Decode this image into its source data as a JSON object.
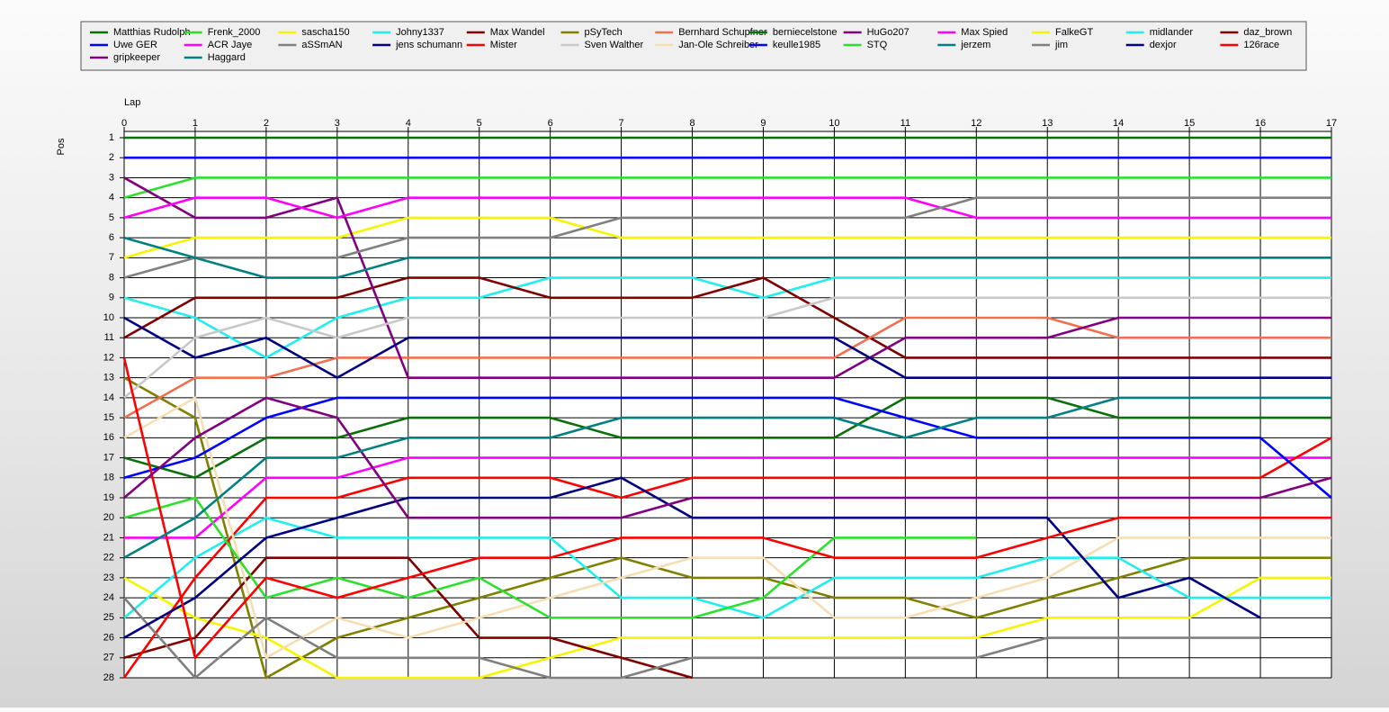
{
  "chart_data": {
    "type": "line",
    "x_label": "Lap",
    "y_label": "Pos",
    "x": [
      0,
      1,
      2,
      3,
      4,
      5,
      6,
      7,
      8,
      9,
      10,
      11,
      12,
      13,
      14,
      15,
      16,
      17
    ],
    "xlim": [
      0,
      17
    ],
    "xticks": [
      0,
      1,
      2,
      3,
      4,
      5,
      6,
      7,
      8,
      9,
      10,
      11,
      12,
      13,
      14,
      15,
      16,
      17
    ],
    "ylim": [
      1,
      28
    ],
    "y_inverted": true,
    "yticks": [
      1,
      2,
      3,
      4,
      5,
      6,
      7,
      8,
      9,
      10,
      11,
      12,
      13,
      14,
      15,
      16,
      17,
      18,
      19,
      20,
      21,
      22,
      23,
      24,
      25,
      26,
      27,
      28
    ],
    "grid": true,
    "legend": "top",
    "series": [
      {
        "name": "Matthias Rudolph",
        "color": "#0a700a",
        "values": [
          1,
          1,
          1,
          1,
          1,
          1,
          1,
          1,
          1,
          1,
          1,
          1,
          1,
          1,
          1,
          1,
          1,
          1
        ]
      },
      {
        "name": "Frenk_2000",
        "color": "#2ee02e",
        "values": [
          4,
          3,
          3,
          3,
          3,
          3,
          3,
          3,
          3,
          3,
          3,
          3,
          3,
          3,
          3,
          3,
          3,
          3
        ]
      },
      {
        "name": "sascha150",
        "color": "#f5f500",
        "values": [
          7,
          6,
          6,
          6,
          5,
          5,
          5,
          6,
          6,
          6,
          6,
          6,
          6,
          6,
          6,
          6,
          6,
          6
        ]
      },
      {
        "name": "Johny1337",
        "color": "#22eeee",
        "values": [
          9,
          10,
          12,
          10,
          9,
          9,
          8,
          8,
          8,
          9,
          8,
          8,
          8,
          8,
          8,
          8,
          8,
          8
        ]
      },
      {
        "name": "Max Wandel",
        "color": "#800000",
        "values": [
          11,
          9,
          9,
          9,
          8,
          8,
          9,
          9,
          9,
          8,
          10,
          12,
          12,
          12,
          12,
          12,
          12,
          12
        ]
      },
      {
        "name": "pSyTech",
        "color": "#808000",
        "values": [
          13,
          15,
          28,
          26,
          25,
          24,
          23,
          22,
          23,
          23,
          24,
          24,
          25,
          24,
          23,
          22,
          22,
          22
        ]
      },
      {
        "name": "Bernhard Schupfner",
        "color": "#f07050",
        "values": [
          15,
          13,
          13,
          12,
          12,
          12,
          12,
          12,
          12,
          12,
          12,
          10,
          10,
          10,
          11,
          11,
          11,
          11
        ]
      },
      {
        "name": "berniecelstone",
        "color": "#0a700a",
        "values": [
          17,
          18,
          16,
          16,
          15,
          15,
          15,
          16,
          16,
          16,
          16,
          14,
          14,
          14,
          15,
          15,
          15,
          15
        ]
      },
      {
        "name": "HuGo207",
        "color": "#800080",
        "values": [
          3,
          5,
          5,
          4,
          13,
          13,
          13,
          13,
          13,
          13,
          13,
          11,
          11,
          11,
          10,
          10,
          10,
          10
        ]
      },
      {
        "name": "Max Spied",
        "color": "#ff00ff",
        "values": [
          5,
          4,
          4,
          5,
          4,
          4,
          4,
          4,
          4,
          4,
          4,
          4,
          5,
          5,
          5,
          5,
          5,
          5
        ]
      },
      {
        "name": "FalkeGT",
        "color": "#f5f500",
        "values": [
          23,
          25,
          26,
          28,
          28,
          28,
          27,
          26,
          26,
          26,
          26,
          26,
          26,
          25,
          25,
          25,
          23,
          23
        ]
      },
      {
        "name": "midlander",
        "color": "#22eeee",
        "values": [
          25,
          22,
          20,
          21,
          21,
          21,
          21,
          24,
          24,
          25,
          23,
          23,
          23,
          22,
          22,
          24,
          24,
          24
        ]
      },
      {
        "name": "daz_brown",
        "color": "#800000",
        "values": [
          27,
          26,
          22,
          22,
          22,
          26,
          26,
          27,
          28,
          null,
          null,
          null,
          null,
          null,
          null,
          null,
          null,
          null
        ]
      },
      {
        "name": "Uwe GER",
        "color": "#0000ff",
        "values": [
          2,
          2,
          2,
          2,
          2,
          2,
          2,
          2,
          2,
          2,
          2,
          2,
          2,
          2,
          2,
          2,
          2,
          2
        ]
      },
      {
        "name": "ACR Jaye",
        "color": "#ff00ff",
        "values": [
          21,
          21,
          18,
          18,
          17,
          17,
          17,
          17,
          17,
          17,
          17,
          17,
          17,
          17,
          17,
          17,
          17,
          17
        ]
      },
      {
        "name": "aSSmAN",
        "color": "#808080",
        "values": [
          8,
          7,
          7,
          7,
          6,
          6,
          6,
          5,
          5,
          5,
          5,
          5,
          4,
          4,
          4,
          4,
          4,
          4
        ]
      },
      {
        "name": "jens schumann",
        "color": "#000080",
        "values": [
          10,
          12,
          11,
          13,
          11,
          11,
          11,
          11,
          11,
          11,
          11,
          13,
          13,
          13,
          13,
          13,
          13,
          13
        ]
      },
      {
        "name": "Mister",
        "color": "#ff0000",
        "values": [
          28,
          23,
          19,
          19,
          18,
          18,
          18,
          19,
          18,
          18,
          18,
          18,
          18,
          18,
          18,
          18,
          18,
          16
        ]
      },
      {
        "name": "Sven Walther",
        "color": "#c8c8c8",
        "values": [
          14,
          11,
          10,
          11,
          10,
          10,
          10,
          10,
          10,
          10,
          9,
          9,
          9,
          9,
          9,
          9,
          9,
          9
        ]
      },
      {
        "name": "Jan-Ole Schreiber",
        "color": "#f5deb3",
        "values": [
          16,
          14,
          27,
          25,
          26,
          25,
          24,
          23,
          22,
          22,
          25,
          25,
          24,
          23,
          21,
          21,
          21,
          21
        ]
      },
      {
        "name": "keulle1985",
        "color": "#0000ff",
        "values": [
          18,
          17,
          15,
          14,
          14,
          14,
          14,
          14,
          14,
          14,
          14,
          15,
          16,
          16,
          16,
          16,
          16,
          19
        ]
      },
      {
        "name": "STQ",
        "color": "#2ee02e",
        "values": [
          20,
          19,
          24,
          23,
          24,
          23,
          25,
          25,
          25,
          24,
          21,
          21,
          21,
          null,
          null,
          null,
          null,
          null
        ]
      },
      {
        "name": "jerzem",
        "color": "#008080",
        "values": [
          6,
          7,
          8,
          8,
          7,
          7,
          7,
          7,
          7,
          7,
          7,
          7,
          7,
          7,
          7,
          7,
          7,
          7
        ]
      },
      {
        "name": "jim",
        "color": "#808080",
        "values": [
          24,
          28,
          25,
          27,
          27,
          27,
          28,
          28,
          27,
          27,
          27,
          27,
          27,
          26,
          26,
          26,
          26,
          null
        ]
      },
      {
        "name": "dexjor",
        "color": "#000080",
        "values": [
          26,
          24,
          21,
          20,
          19,
          19,
          19,
          18,
          20,
          20,
          20,
          20,
          20,
          20,
          24,
          23,
          25,
          null
        ]
      },
      {
        "name": "126race",
        "color": "#ff0000",
        "values": [
          12,
          27,
          23,
          24,
          23,
          22,
          22,
          21,
          21,
          21,
          22,
          22,
          22,
          21,
          20,
          20,
          20,
          20
        ]
      },
      {
        "name": "gripkeeper",
        "color": "#800080",
        "values": [
          19,
          16,
          14,
          15,
          20,
          20,
          20,
          20,
          19,
          19,
          19,
          19,
          19,
          19,
          19,
          19,
          19,
          18
        ]
      },
      {
        "name": "Haggard",
        "color": "#008080",
        "values": [
          22,
          20,
          17,
          17,
          16,
          16,
          16,
          15,
          15,
          15,
          15,
          16,
          15,
          15,
          14,
          14,
          14,
          14
        ]
      }
    ]
  }
}
